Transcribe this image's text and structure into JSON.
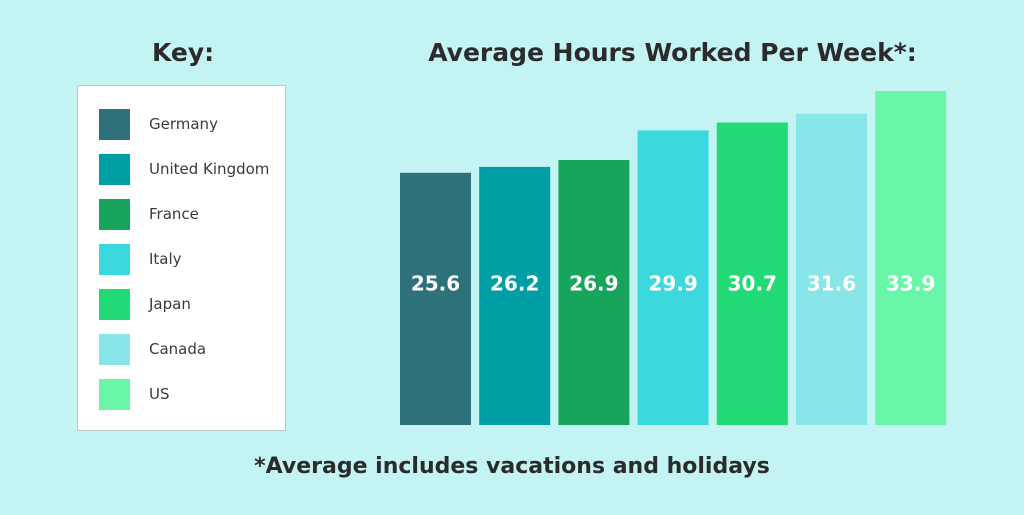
{
  "key_title": "Key:",
  "footnote": "*Average includes vacations and holidays",
  "chart_data": {
    "type": "bar",
    "title": "Average Hours Worked Per Week*:",
    "xlabel": "",
    "ylabel": "",
    "grid": false,
    "legend_placement": "left",
    "ylim": [
      0,
      33.9
    ],
    "categories": [
      "Germany",
      "United Kingdom",
      "France",
      "Italy",
      "Japan",
      "Canada",
      "US"
    ],
    "values": [
      25.6,
      26.2,
      26.9,
      29.9,
      30.7,
      31.6,
      33.9
    ],
    "value_labels": [
      "25.6",
      "26.2",
      "26.9",
      "29.9",
      "30.7",
      "31.6",
      "33.9"
    ],
    "colors": [
      "#2f717a",
      "#009ea5",
      "#17a55b",
      "#3bd9dd",
      "#22da76",
      "#88e6e8",
      "#69f6a9"
    ]
  }
}
